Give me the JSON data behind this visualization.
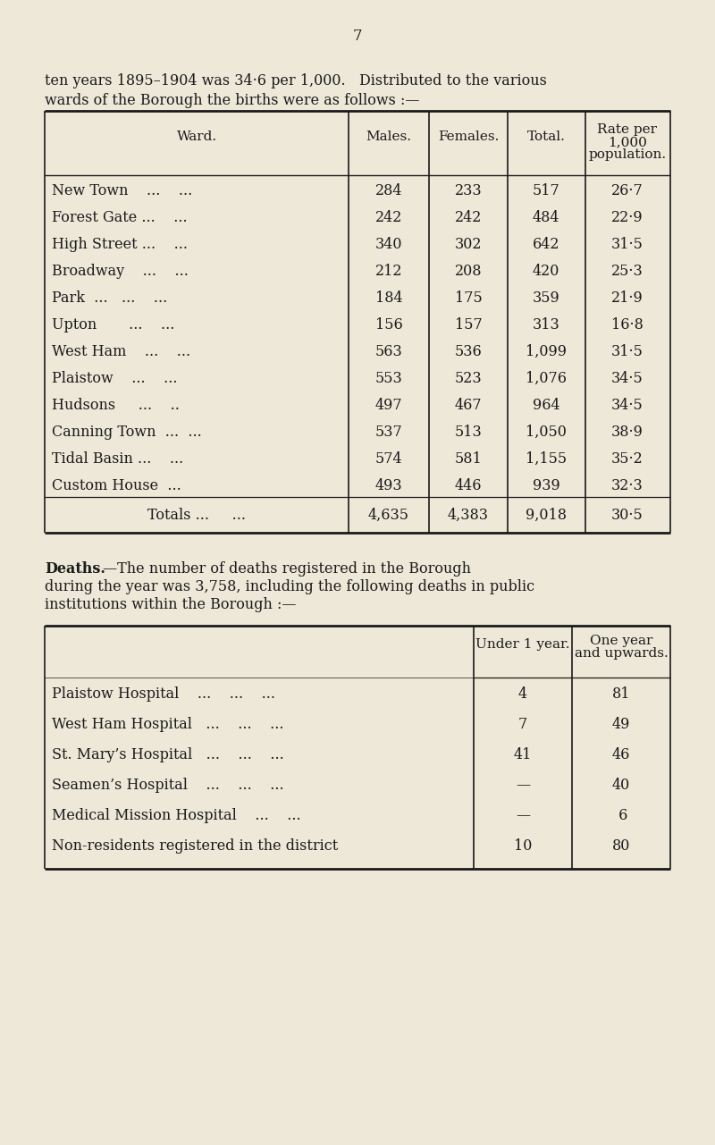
{
  "page_number": "7",
  "intro_text_line1": "ten years 1895–1904 was 34·6 per 1,000.   Distributed to the various",
  "intro_text_line2": "wards of the Borough the births were as follows :—",
  "bg_color": "#EDE8D8",
  "text_color": "#1a1a1a",
  "table1_col_headers": [
    "Ward.",
    "Males.",
    "Females.",
    "Total.",
    "Rate per\n1,000\npopulation."
  ],
  "table1_rows": [
    [
      "New Town    ...    ...",
      "284",
      "233",
      "517",
      "26·7"
    ],
    [
      "Forest Gate ...    ...",
      "242",
      "242",
      "484",
      "22·9"
    ],
    [
      "High Street ...    ...",
      "340",
      "302",
      "642",
      "31·5"
    ],
    [
      "Broadway    ...    ...",
      "212",
      "208",
      "420",
      "25·3"
    ],
    [
      "Park  ...   ...    ...",
      "184",
      "175",
      "359",
      "21·9"
    ],
    [
      "Upton       ...    ...",
      "156",
      "157",
      "313",
      "16·8"
    ],
    [
      "West Ham    ...    ...",
      "563",
      "536",
      "1,099",
      "31·5"
    ],
    [
      "Plaistow    ...    ...",
      "553",
      "523",
      "1,076",
      "34·5"
    ],
    [
      "Hudsons     ...    ..",
      "497",
      "467",
      "964",
      "34·5"
    ],
    [
      "Canning Town  ...  ...",
      "537",
      "513",
      "1,050",
      "38·9"
    ],
    [
      "Tidal Basin ...    ...",
      "574",
      "581",
      "1,155",
      "35·2"
    ],
    [
      "Custom House  ...",
      "493",
      "446",
      "939",
      "32·3"
    ]
  ],
  "table1_totals_label": "Totals ...     ...",
  "table1_totals_values": [
    "4,635",
    "4,383",
    "9,018",
    "30·5"
  ],
  "deaths_bold": "Deaths.",
  "deaths_rest_line1": "—The number of deaths registered in the Borough",
  "deaths_line2": "during the year was 3,758, including the following deaths in public",
  "deaths_line3": "institutions within the Borough :—",
  "table2_col_headers": [
    "Under 1 year.",
    "One year\nand upwards."
  ],
  "table2_rows": [
    [
      "Plaistow Hospital    ...    ...    ...",
      "4",
      "81"
    ],
    [
      "West Ham Hospital   ...    ...    ...",
      "7",
      "49"
    ],
    [
      "St. Mary’s Hospital   ...    ...    ...",
      "41",
      "46"
    ],
    [
      "Seamen’s Hospital    ...    ...    ...",
      "—",
      "40"
    ],
    [
      "Medical Mission Hospital    ...    ...",
      "—",
      " 6"
    ],
    [
      "Non-residents registered in the district",
      "10",
      "80"
    ]
  ]
}
